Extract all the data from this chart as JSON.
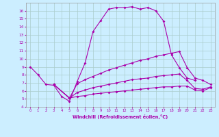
{
  "xlabel": "Windchill (Refroidissement éolien,°C)",
  "background_color": "#cceeff",
  "grid_color": "#aacccc",
  "line_color": "#aa00aa",
  "xlim": [
    -0.5,
    23.5
  ],
  "ylim": [
    4,
    17
  ],
  "line1_x": [
    0,
    1,
    2,
    3,
    4,
    5,
    6,
    7,
    8,
    9,
    10,
    11,
    12,
    13,
    14,
    15,
    16,
    17,
    18,
    19,
    20,
    21
  ],
  "line1_y": [
    9.0,
    8.0,
    6.8,
    6.7,
    5.3,
    4.7,
    7.2,
    9.5,
    13.4,
    14.8,
    16.2,
    16.4,
    16.4,
    16.5,
    16.2,
    16.4,
    16.0,
    14.7,
    10.5,
    8.9,
    7.6,
    7.3
  ],
  "line2_x": [
    3,
    5,
    6,
    7,
    8,
    9,
    10,
    11,
    12,
    13,
    14,
    15,
    16,
    17,
    18,
    19,
    20,
    21,
    22,
    23
  ],
  "line2_y": [
    6.8,
    5.1,
    6.9,
    7.4,
    7.8,
    8.2,
    8.6,
    8.9,
    9.2,
    9.5,
    9.8,
    10.0,
    10.3,
    10.5,
    10.7,
    10.9,
    8.9,
    7.6,
    7.3,
    6.8
  ],
  "line3_x": [
    3,
    5,
    6,
    7,
    8,
    9,
    10,
    11,
    12,
    13,
    14,
    15,
    16,
    17,
    18,
    19,
    20,
    21,
    22,
    23
  ],
  "line3_y": [
    6.8,
    5.1,
    5.8,
    6.1,
    6.4,
    6.6,
    6.8,
    7.0,
    7.2,
    7.4,
    7.5,
    7.6,
    7.8,
    7.9,
    8.0,
    8.1,
    7.3,
    6.3,
    6.2,
    6.5
  ],
  "line4_x": [
    3,
    5,
    6,
    7,
    8,
    9,
    10,
    11,
    12,
    13,
    14,
    15,
    16,
    17,
    18,
    19,
    20,
    21,
    22,
    23
  ],
  "line4_y": [
    6.8,
    5.1,
    5.3,
    5.4,
    5.6,
    5.7,
    5.8,
    5.9,
    6.0,
    6.1,
    6.2,
    6.3,
    6.4,
    6.5,
    6.5,
    6.6,
    6.6,
    6.1,
    6.0,
    6.4
  ]
}
